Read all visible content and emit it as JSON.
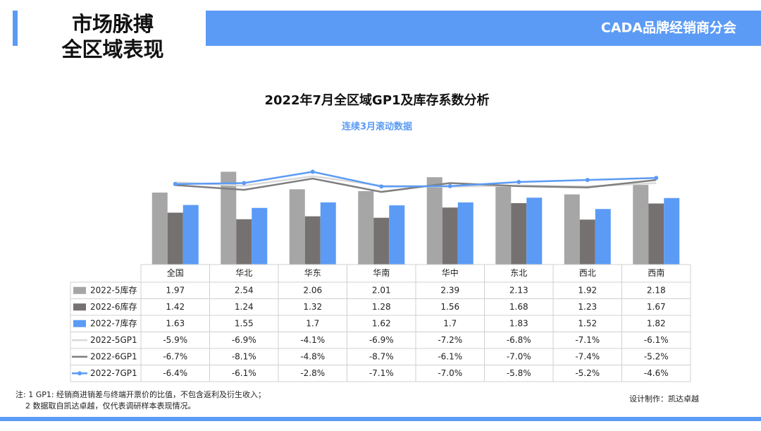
{
  "header": {
    "title_lines": [
      "市场脉搏",
      "全区域表现"
    ],
    "brand": "CADA品牌经销商分会"
  },
  "chart_data": {
    "type": "bar",
    "title": "2022年7月全区域GP1及库存系数分析",
    "subtitle": "连续3月滚动数据",
    "categories": [
      "全国",
      "华北",
      "华东",
      "华南",
      "华中",
      "东北",
      "西北",
      "西南"
    ],
    "ylim": [
      0,
      2.8
    ],
    "y2lim": [
      -30,
      0
    ],
    "series": [
      {
        "name": "2022-5库存",
        "type": "bar",
        "color": "#a6a6a6",
        "values": [
          1.97,
          2.54,
          2.06,
          2.01,
          2.39,
          2.13,
          1.92,
          2.18
        ]
      },
      {
        "name": "2022-6库存",
        "type": "bar",
        "color": "#767171",
        "values": [
          1.42,
          1.24,
          1.32,
          1.28,
          1.56,
          1.68,
          1.23,
          1.67
        ]
      },
      {
        "name": "2022-7库存",
        "type": "bar",
        "color": "#5b9bf5",
        "values": [
          1.63,
          1.55,
          1.7,
          1.62,
          1.7,
          1.83,
          1.52,
          1.82
        ]
      },
      {
        "name": "2022-5GP1",
        "type": "line",
        "axis": "y2",
        "color": "#d9d9d9",
        "values": [
          -5.9,
          -6.9,
          -4.1,
          -6.9,
          -7.2,
          -6.8,
          -7.1,
          -6.1
        ],
        "value_labels": [
          "-5.9%",
          "-6.9%",
          "-4.1%",
          "-6.9%",
          "-7.2%",
          "-6.8%",
          "-7.1%",
          "-6.1%"
        ]
      },
      {
        "name": "2022-6GP1",
        "type": "line",
        "axis": "y2",
        "color": "#7f7f7f",
        "values": [
          -6.7,
          -8.1,
          -4.8,
          -8.7,
          -6.1,
          -7.0,
          -7.4,
          -5.2
        ],
        "value_labels": [
          "-6.7%",
          "-8.1%",
          "-4.8%",
          "-8.7%",
          "-6.1%",
          "-7.0%",
          "-7.4%",
          "-5.2%"
        ]
      },
      {
        "name": "2022-7GP1",
        "type": "line",
        "axis": "y2",
        "color": "#5b9bf5",
        "marker": "circle",
        "values": [
          -6.4,
          -6.1,
          -2.8,
          -7.1,
          -7.0,
          -5.8,
          -5.2,
          -4.6
        ],
        "value_labels": [
          "-6.4%",
          "-6.1%",
          "-2.8%",
          "-7.1%",
          "-7.0%",
          "-5.8%",
          "-5.2%",
          "-4.6%"
        ]
      }
    ]
  },
  "notes": [
    "注: 1 GP1: 经销商进销差与终端开票价的比值，不包含返利及衍生收入；",
    "2 数据取自凯达卓越，仅代表调研样本表现情况。"
  ],
  "credit": "设计制作：凯达卓越"
}
